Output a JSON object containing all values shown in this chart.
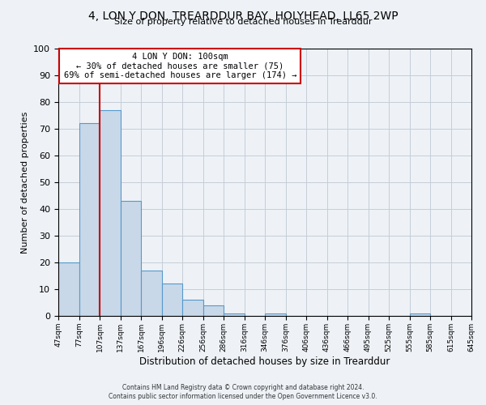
{
  "title": "4, LON Y DON, TREARDDUR BAY, HOLYHEAD, LL65 2WP",
  "subtitle": "Size of property relative to detached houses in Trearddur",
  "xlabel": "Distribution of detached houses by size in Trearddur",
  "ylabel": "Number of detached properties",
  "bar_values": [
    20,
    72,
    77,
    43,
    17,
    12,
    6,
    4,
    1,
    0,
    1,
    0,
    0,
    0,
    0,
    0,
    0,
    1,
    0,
    0
  ],
  "bar_labels": [
    "47sqm",
    "77sqm",
    "107sqm",
    "137sqm",
    "167sqm",
    "196sqm",
    "226sqm",
    "256sqm",
    "286sqm",
    "316sqm",
    "346sqm",
    "376sqm",
    "406sqm",
    "436sqm",
    "466sqm",
    "495sqm",
    "525sqm",
    "555sqm",
    "585sqm",
    "615sqm",
    "645sqm"
  ],
  "ylim": [
    0,
    100
  ],
  "yticks": [
    0,
    10,
    20,
    30,
    40,
    50,
    60,
    70,
    80,
    90,
    100
  ],
  "bar_color": "#c8d8e8",
  "bar_edge_color": "#5599cc",
  "vline_x": 2,
  "vline_color": "#cc0000",
  "annotation_title": "4 LON Y DON: 100sqm",
  "annotation_line1": "← 30% of detached houses are smaller (75)",
  "annotation_line2": "69% of semi-detached houses are larger (174) →",
  "annotation_box_color": "#ffffff",
  "annotation_box_edge": "#cc0000",
  "footnote1": "Contains HM Land Registry data © Crown copyright and database right 2024.",
  "footnote2": "Contains public sector information licensed under the Open Government Licence v3.0.",
  "background_color": "#eef2f7",
  "grid_color": "#c5cdd8"
}
